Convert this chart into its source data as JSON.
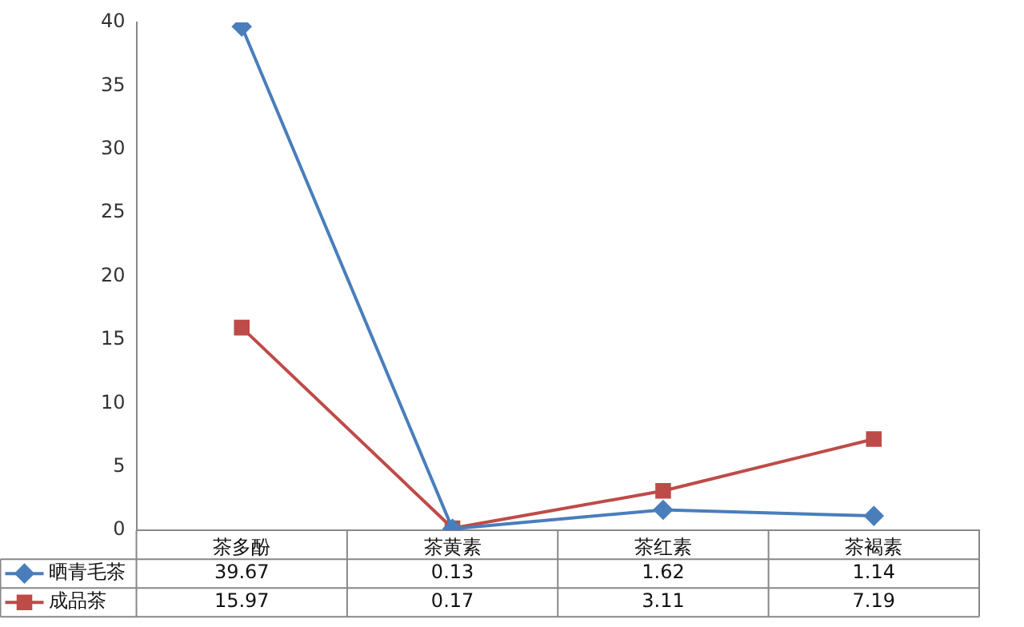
{
  "chart_data": {
    "type": "line",
    "categories": [
      "茶多酚",
      "茶黄素",
      "茶红素",
      "茶褐素"
    ],
    "series": [
      {
        "name": "晒青毛茶",
        "color": "#4a7ebb",
        "marker": "diamond",
        "values": [
          39.67,
          0.13,
          1.62,
          1.14
        ]
      },
      {
        "name": "成品茶",
        "color": "#be4b48",
        "marker": "square",
        "values": [
          15.97,
          0.17,
          3.11,
          7.19
        ]
      }
    ],
    "ylim": [
      0,
      40
    ],
    "yticks": [
      0,
      5,
      10,
      15,
      20,
      25,
      30,
      35,
      40
    ],
    "grid": false,
    "legend": "bottom",
    "data_labels": true
  }
}
